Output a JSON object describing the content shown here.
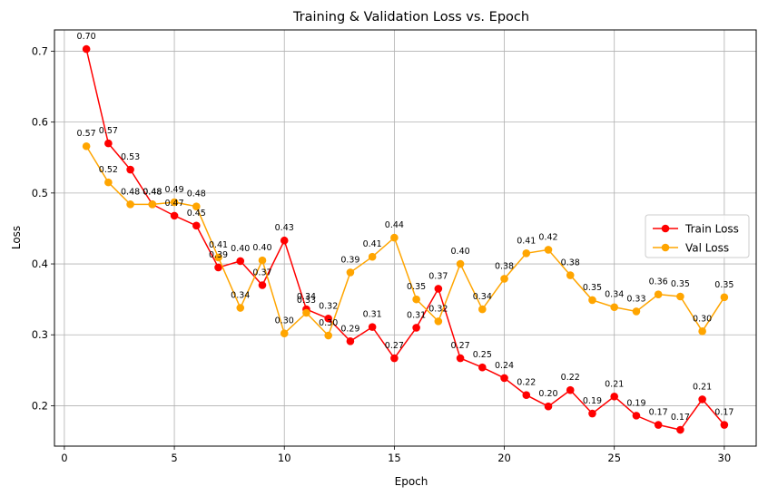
{
  "chart_data": {
    "type": "line",
    "title": "Training & Validation Loss vs. Epoch",
    "xlabel": "Epoch",
    "ylabel": "Loss",
    "xlim": [
      -0.45,
      31.45
    ],
    "ylim": [
      0.143,
      0.73
    ],
    "xticks": [
      0,
      5,
      10,
      15,
      20,
      25,
      30
    ],
    "yticks": [
      0.2,
      0.3,
      0.4,
      0.5,
      0.6,
      0.7
    ],
    "grid": true,
    "legend_position": "center-right",
    "x": [
      1,
      2,
      3,
      4,
      5,
      6,
      7,
      8,
      9,
      10,
      11,
      12,
      13,
      14,
      15,
      16,
      17,
      18,
      19,
      20,
      21,
      22,
      23,
      24,
      25,
      26,
      27,
      28,
      29,
      30
    ],
    "series": [
      {
        "name": "Train Loss",
        "color": "#ff0000",
        "marker": "circle",
        "values": [
          0.703,
          0.57,
          0.533,
          0.484,
          0.468,
          0.454,
          0.395,
          0.404,
          0.37,
          0.433,
          0.336,
          0.323,
          0.291,
          0.311,
          0.267,
          0.31,
          0.365,
          0.267,
          0.254,
          0.239,
          0.215,
          0.199,
          0.222,
          0.189,
          0.213,
          0.186,
          0.173,
          0.166,
          0.209,
          0.173
        ],
        "data_labels": [
          "0.70",
          "0.57",
          "0.53",
          "0.48",
          "0.47",
          "0.45",
          "0.39",
          "0.40",
          "0.37",
          "0.43",
          "0.34",
          "0.32",
          "0.29",
          "0.31",
          "0.27",
          "0.31",
          "0.37",
          "0.27",
          "0.25",
          "0.24",
          "0.22",
          "0.20",
          "0.22",
          "0.19",
          "0.21",
          "0.19",
          "0.17",
          "0.17",
          "0.21",
          "0.17"
        ]
      },
      {
        "name": "Val Loss",
        "color": "#ffa500",
        "marker": "circle",
        "values": [
          0.566,
          0.515,
          0.484,
          0.484,
          0.487,
          0.481,
          0.409,
          0.338,
          0.405,
          0.302,
          0.331,
          0.299,
          0.388,
          0.41,
          0.437,
          0.35,
          0.319,
          0.4,
          0.336,
          0.379,
          0.415,
          0.42,
          0.384,
          0.349,
          0.339,
          0.333,
          0.357,
          0.354,
          0.305,
          0.353
        ],
        "data_labels": [
          "0.57",
          "0.52",
          "0.48",
          "0.48",
          "0.49",
          "0.48",
          "0.41",
          "0.34",
          "0.40",
          "0.30",
          "0.33",
          "0.30",
          "0.39",
          "0.41",
          "0.44",
          "0.35",
          "0.32",
          "0.40",
          "0.34",
          "0.38",
          "0.41",
          "0.42",
          "0.38",
          "0.35",
          "0.34",
          "0.33",
          "0.36",
          "0.35",
          "0.30",
          "0.35"
        ]
      }
    ]
  }
}
